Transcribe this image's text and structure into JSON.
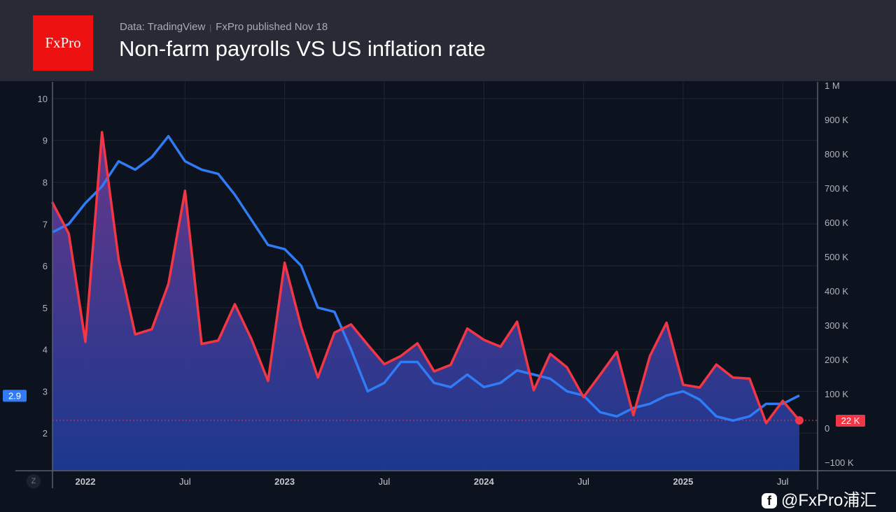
{
  "header": {
    "logo_text": "FxPro",
    "source": "Data: TradingView",
    "separator": "|",
    "published": "FxPro published Nov 18",
    "title": "Non-farm payrolls VS US inflation rate"
  },
  "watermark": {
    "icon": "brand-icon",
    "text": "@FxPro浦汇"
  },
  "zoom_button": "Z",
  "chart_data": {
    "type": "line",
    "title": "Non-farm payrolls VS US inflation rate",
    "grid": true,
    "x": [
      "2021-11",
      "2021-12",
      "2022-01",
      "2022-02",
      "2022-03",
      "2022-04",
      "2022-05",
      "2022-06",
      "2022-07",
      "2022-08",
      "2022-09",
      "2022-10",
      "2022-11",
      "2022-12",
      "2023-01",
      "2023-02",
      "2023-03",
      "2023-04",
      "2023-05",
      "2023-06",
      "2023-07",
      "2023-08",
      "2023-09",
      "2023-10",
      "2023-11",
      "2023-12",
      "2024-01",
      "2024-02",
      "2024-03",
      "2024-04",
      "2024-05",
      "2024-06",
      "2024-07",
      "2024-08",
      "2024-09",
      "2024-10",
      "2024-11",
      "2024-12",
      "2025-01",
      "2025-02",
      "2025-03",
      "2025-04",
      "2025-05",
      "2025-06",
      "2025-07",
      "2025-08"
    ],
    "x_ticks": [
      {
        "date": "2022-01",
        "label": "2022",
        "major": true
      },
      {
        "date": "2022-07",
        "label": "Jul",
        "major": false
      },
      {
        "date": "2023-01",
        "label": "2023",
        "major": true
      },
      {
        "date": "2023-07",
        "label": "Jul",
        "major": false
      },
      {
        "date": "2024-01",
        "label": "2024",
        "major": true
      },
      {
        "date": "2024-07",
        "label": "Jul",
        "major": false
      },
      {
        "date": "2025-01",
        "label": "2025",
        "major": true
      },
      {
        "date": "2025-07",
        "label": "Jul",
        "major": false
      }
    ],
    "left_axis": {
      "range": [
        1.1,
        10.4
      ],
      "ticks": [
        2,
        3,
        4,
        5,
        6,
        7,
        8,
        9,
        10
      ],
      "tick_labels": [
        "2",
        "3",
        "4",
        "5",
        "6",
        "7",
        "8",
        "9",
        "10"
      ]
    },
    "right_axis": {
      "range": [
        -125000,
        1010000
      ],
      "ticks": [
        -100000,
        0,
        100000,
        200000,
        300000,
        400000,
        500000,
        600000,
        700000,
        800000,
        900000,
        1000000
      ],
      "tick_labels": [
        "−100 K",
        "0",
        "100 K",
        "200 K",
        "300 K",
        "400 K",
        "500 K",
        "600 K",
        "700 K",
        "800 K",
        "900 K",
        "1 M"
      ]
    },
    "series": [
      {
        "key": "inflation",
        "axis": "left",
        "color": "#2f7cf6",
        "values": [
          6.8,
          7.0,
          7.5,
          7.9,
          8.5,
          8.3,
          8.6,
          9.1,
          8.5,
          8.3,
          8.2,
          7.7,
          7.1,
          6.5,
          6.4,
          6.0,
          5.0,
          4.9,
          4.0,
          3.0,
          3.2,
          3.7,
          3.7,
          3.2,
          3.1,
          3.4,
          3.1,
          3.2,
          3.5,
          3.4,
          3.3,
          3.0,
          2.9,
          2.5,
          2.4,
          2.6,
          2.7,
          2.9,
          3.0,
          2.8,
          2.4,
          2.3,
          2.4,
          2.7,
          2.7,
          2.9
        ],
        "last_label": "2.9"
      },
      {
        "key": "payrolls",
        "axis": "right",
        "color": "#f23645",
        "fill_top": "#6b3a90",
        "fill_bottom": "#1c3a94",
        "values": [
          659000,
          567000,
          251000,
          863000,
          492000,
          273000,
          288000,
          420000,
          692000,
          245000,
          255000,
          361000,
          259000,
          137000,
          482000,
          294000,
          147000,
          278000,
          302000,
          243000,
          186000,
          210000,
          247000,
          165000,
          184000,
          290000,
          257000,
          237000,
          310000,
          110000,
          216000,
          177000,
          90000,
          155000,
          222000,
          37000,
          210000,
          307000,
          126000,
          118000,
          185000,
          147000,
          144000,
          14000,
          79000,
          22000
        ],
        "last_label": "22 K"
      }
    ]
  }
}
